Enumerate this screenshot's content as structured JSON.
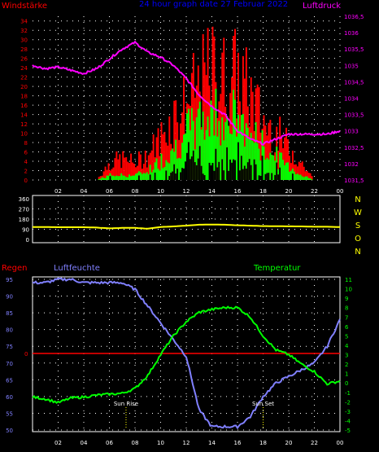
{
  "colors": {
    "background": "#000000",
    "wind_gust": "#ff0000",
    "wind_avg": "#00ff00",
    "wind_min": "#000000",
    "pressure": "#ff00ff",
    "direction": "#ffff00",
    "rain": "#ff0000",
    "humidity": "#8080ff",
    "temperature": "#00ff00",
    "grid": "#ffffff",
    "title": "#0000ff",
    "frame": "#ffffff",
    "direction_labels": "#ffff00",
    "sun_marker": "#ffff00",
    "sun_text": "#ffffff"
  },
  "chart_data": [
    {
      "type": "bar",
      "title": "24 hour graph date   27 Februar 2022",
      "left_label": "Windstärke",
      "right_label": "Luftdruck",
      "x_ticks": [
        "02",
        "04",
        "06",
        "08",
        "10",
        "12",
        "14",
        "16",
        "18",
        "20",
        "22",
        "00"
      ],
      "y_left_ticks": [
        "0",
        "2",
        "4",
        "6",
        "8",
        "10",
        "12",
        "14",
        "16",
        "18",
        "20",
        "22",
        "24",
        "26",
        "28",
        "30",
        "32",
        "34"
      ],
      "y_left_range": [
        0,
        35
      ],
      "y_right_ticks": [
        "1031,5",
        "1032",
        "1032,5",
        "1033",
        "1033,5",
        "1034",
        "1034,5",
        "1035",
        "1035,5",
        "1036",
        "1036,5"
      ],
      "y_right_range": [
        1031.5,
        1036.5
      ],
      "grid": "dotted",
      "x_hours": [
        0,
        1,
        2,
        3,
        4,
        5,
        6,
        7,
        8,
        9,
        10,
        11,
        12,
        13,
        14,
        15,
        16,
        17,
        18,
        19,
        20,
        21,
        22,
        23,
        24
      ],
      "series": [
        {
          "key": "wind_gust",
          "values": [
            0,
            0,
            0,
            0,
            0,
            0,
            4,
            5,
            4,
            6,
            10,
            15,
            18,
            22,
            26,
            24,
            25,
            20,
            14,
            11,
            8,
            4,
            0,
            0,
            0
          ]
        },
        {
          "key": "wind_avg",
          "values": [
            0,
            0,
            0,
            0,
            0,
            0,
            1,
            1,
            1,
            2,
            4,
            7,
            10,
            12,
            14,
            14,
            13,
            10,
            7,
            5,
            3,
            1,
            0,
            0,
            0
          ]
        },
        {
          "key": "pressure",
          "values": [
            1035.0,
            1034.9,
            1034.95,
            1034.85,
            1034.75,
            1034.9,
            1035.2,
            1035.5,
            1035.7,
            1035.4,
            1035.25,
            1035.0,
            1034.6,
            1034.1,
            1033.75,
            1033.5,
            1033.0,
            1032.75,
            1032.6,
            1032.75,
            1032.9,
            1032.9,
            1032.9,
            1032.9,
            1033.0
          ]
        }
      ]
    },
    {
      "type": "line",
      "right_labels": [
        "N",
        "W",
        "S",
        "O",
        "N"
      ],
      "y_ticks": [
        "0",
        "90",
        "180",
        "270",
        "360"
      ],
      "y_range": [
        0,
        360
      ],
      "x_hours": [
        0,
        1,
        2,
        3,
        4,
        5,
        6,
        7,
        8,
        9,
        10,
        11,
        12,
        13,
        14,
        15,
        16,
        17,
        18,
        19,
        20,
        21,
        22,
        23,
        24
      ],
      "series": [
        {
          "key": "direction",
          "values": [
            110,
            110,
            108,
            108,
            108,
            105,
            98,
            102,
            102,
            95,
            110,
            115,
            122,
            130,
            132,
            130,
            125,
            122,
            118,
            117,
            116,
            115,
            112,
            112,
            110
          ]
        }
      ]
    },
    {
      "type": "line",
      "left_label": "Regen",
      "humidity_label": "Luftfeuchte",
      "temperature_label": "Temperatur",
      "x_ticks": [
        "02",
        "04",
        "06",
        "08",
        "10",
        "12",
        "14",
        "16",
        "18",
        "20",
        "22",
        "00"
      ],
      "y_left_ticks": [
        "50",
        "55",
        "60",
        "65",
        "70",
        "75",
        "80",
        "85",
        "90",
        "95"
      ],
      "y_left_range": [
        50,
        95
      ],
      "y_left_zero_label": "0",
      "y_right_ticks": [
        "-5",
        "-4",
        "-3",
        "-2",
        "-1",
        "0",
        "1",
        "2",
        "3",
        "4",
        "5",
        "6",
        "7",
        "8",
        "9",
        "10",
        "11"
      ],
      "y_right_range": [
        -5,
        11
      ],
      "rain_value": 0,
      "grid": "dotted",
      "annotations": [
        {
          "label": "Sun Rise",
          "hour": 7.3
        },
        {
          "label": "Sun Set",
          "hour": 18.0
        }
      ],
      "x_hours": [
        0,
        1,
        2,
        3,
        4,
        5,
        6,
        7,
        8,
        9,
        10,
        11,
        12,
        13,
        14,
        15,
        16,
        17,
        18,
        19,
        20,
        21,
        22,
        23,
        24
      ],
      "series": [
        {
          "key": "humidity",
          "values": [
            94,
            94,
            95,
            95,
            94,
            94,
            94,
            94,
            92,
            87,
            82,
            77,
            72,
            56,
            51,
            51,
            51,
            54,
            60,
            64,
            66,
            68,
            70,
            75,
            83
          ]
        },
        {
          "key": "temperature",
          "values": [
            -1.5,
            -1.7,
            -2.1,
            -1.6,
            -1.5,
            -1.3,
            -1.2,
            -1.1,
            -0.6,
            0.8,
            3.0,
            5.0,
            6.5,
            7.5,
            7.8,
            8.0,
            8.0,
            7.0,
            5.0,
            3.5,
            3.0,
            2.0,
            1.2,
            -0.1,
            0.2
          ]
        }
      ]
    }
  ]
}
